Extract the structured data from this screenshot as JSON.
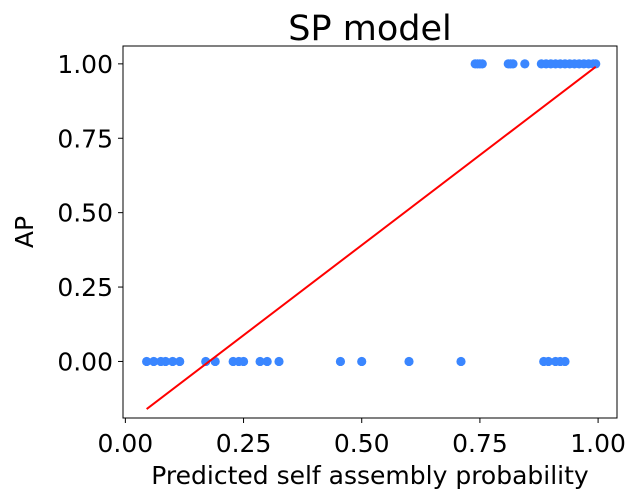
{
  "chart_data": {
    "type": "scatter",
    "title": "SP model",
    "xlabel": "Predicted self assembly probability",
    "ylabel": "AP",
    "xlim": [
      -0.005,
      1.04
    ],
    "ylim": [
      -0.19,
      1.06
    ],
    "xticks": [
      0.0,
      0.25,
      0.5,
      0.75,
      1.0
    ],
    "xtick_labels": [
      "0.00",
      "0.25",
      "0.50",
      "0.75",
      "1.00"
    ],
    "yticks": [
      0.0,
      0.25,
      0.5,
      0.75,
      1.0
    ],
    "ytick_labels": [
      "0.00",
      "0.25",
      "0.50",
      "0.75",
      "1.00"
    ],
    "grid": false,
    "legend": "none",
    "series": [
      {
        "kind": "scatter",
        "color": "#3a86ff",
        "x": [
          0.045,
          0.06,
          0.075,
          0.085,
          0.1,
          0.115,
          0.17,
          0.19,
          0.228,
          0.24,
          0.25,
          0.285,
          0.3,
          0.325,
          0.455,
          0.5,
          0.6,
          0.71,
          0.885,
          0.895,
          0.91,
          0.92,
          0.93,
          0.74,
          0.745,
          0.75,
          0.755,
          0.81,
          0.815,
          0.82,
          0.845,
          0.88,
          0.89,
          0.9,
          0.91,
          0.92,
          0.93,
          0.94,
          0.95,
          0.96,
          0.97,
          0.98,
          0.99,
          0.995
        ],
        "y": [
          0,
          0,
          0,
          0,
          0,
          0,
          0,
          0,
          0,
          0,
          0,
          0,
          0,
          0,
          0,
          0,
          0,
          0,
          0,
          0,
          0,
          0,
          0,
          1,
          1,
          1,
          1,
          1,
          1,
          1,
          1,
          1,
          1,
          1,
          1,
          1,
          1,
          1,
          1,
          1,
          1,
          1,
          1,
          1
        ]
      },
      {
        "kind": "line",
        "color": "#ff0000",
        "x": [
          0.045,
          0.995
        ],
        "y": [
          -0.16,
          0.99
        ]
      }
    ]
  }
}
